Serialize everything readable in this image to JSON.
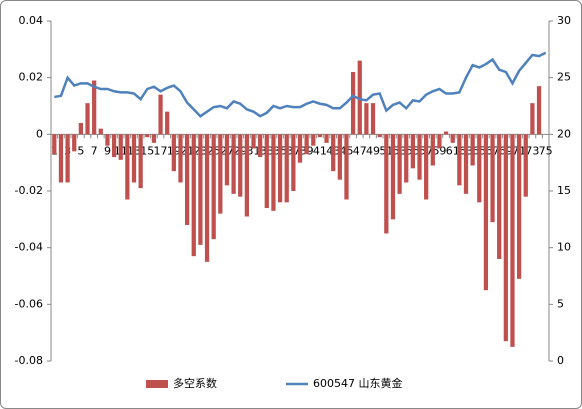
{
  "chart_data": {
    "type": "bar",
    "categories": [
      1,
      null,
      3,
      null,
      5,
      null,
      7,
      null,
      9,
      null,
      11,
      null,
      13,
      null,
      15,
      null,
      17,
      null,
      19,
      null,
      21,
      null,
      23,
      null,
      25,
      null,
      27,
      null,
      29,
      null,
      31,
      null,
      33,
      null,
      35,
      null,
      37,
      null,
      39,
      null,
      41,
      null,
      43,
      null,
      45,
      null,
      47,
      null,
      49,
      null,
      51,
      null,
      53,
      null,
      55,
      null,
      57,
      null,
      59,
      null,
      61,
      null,
      63,
      null,
      65,
      null,
      67,
      null,
      69,
      null,
      71,
      null,
      73,
      null,
      75
    ],
    "series": [
      {
        "name": "多空系数",
        "color": "#c0504d",
        "type": "bar",
        "axis": "y",
        "values": [
          -0.007,
          -0.017,
          -0.017,
          -0.006,
          0.004,
          0.011,
          0.019,
          0.002,
          -0.004,
          -0.008,
          -0.009,
          -0.023,
          -0.017,
          -0.019,
          -0.001,
          -0.003,
          0.014,
          0.008,
          -0.013,
          -0.017,
          -0.032,
          -0.043,
          -0.039,
          -0.045,
          -0.037,
          -0.028,
          -0.018,
          -0.021,
          -0.022,
          -0.029,
          -0.005,
          -0.008,
          -0.026,
          -0.027,
          -0.024,
          -0.024,
          -0.02,
          -0.01,
          -0.007,
          -0.004,
          -0.001,
          -0.003,
          -0.013,
          -0.016,
          -0.023,
          0.022,
          0.026,
          0.011,
          0.011,
          -0.001,
          -0.035,
          -0.03,
          -0.021,
          -0.017,
          -0.012,
          -0.016,
          -0.023,
          -0.011,
          -0.005,
          0.001,
          -0.003,
          -0.018,
          -0.021,
          -0.011,
          -0.024,
          -0.055,
          -0.031,
          -0.044,
          -0.073,
          -0.075,
          -0.051,
          -0.022,
          0.011,
          0.017,
          0
        ]
      },
      {
        "name": "600547 山东黄金",
        "color": "#4f81bd",
        "type": "line",
        "axis": "y2",
        "values": [
          23.3,
          23.4,
          25.0,
          24.3,
          24.5,
          24.5,
          24.2,
          24.0,
          24.0,
          23.8,
          23.7,
          23.7,
          23.6,
          23.1,
          24.0,
          24.2,
          23.8,
          24.1,
          24.3,
          23.8,
          22.8,
          22.2,
          21.6,
          22.0,
          22.4,
          22.5,
          22.3,
          22.9,
          22.7,
          22.2,
          22.0,
          21.6,
          21.9,
          22.5,
          22.3,
          22.5,
          22.4,
          22.4,
          22.7,
          22.9,
          22.7,
          22.6,
          22.3,
          22.3,
          22.8,
          23.4,
          23.1,
          23.0,
          23.5,
          23.6,
          22.1,
          22.6,
          22.8,
          22.3,
          23.0,
          22.9,
          23.5,
          23.8,
          24.0,
          23.6,
          23.6,
          23.7,
          25.0,
          26.1,
          25.9,
          26.2,
          26.6,
          25.7,
          25.5,
          24.5,
          25.6,
          26.3,
          27.0,
          26.9,
          27.2
        ]
      }
    ],
    "ylim": [
      -0.08,
      0.04
    ],
    "yticks": [
      -0.08,
      -0.06,
      -0.04,
      -0.02,
      0,
      0.02,
      0.04
    ],
    "y2lim": [
      0,
      30
    ],
    "y2ticks": [
      0,
      5,
      10,
      15,
      20,
      25,
      30
    ],
    "legend": "bottom"
  }
}
